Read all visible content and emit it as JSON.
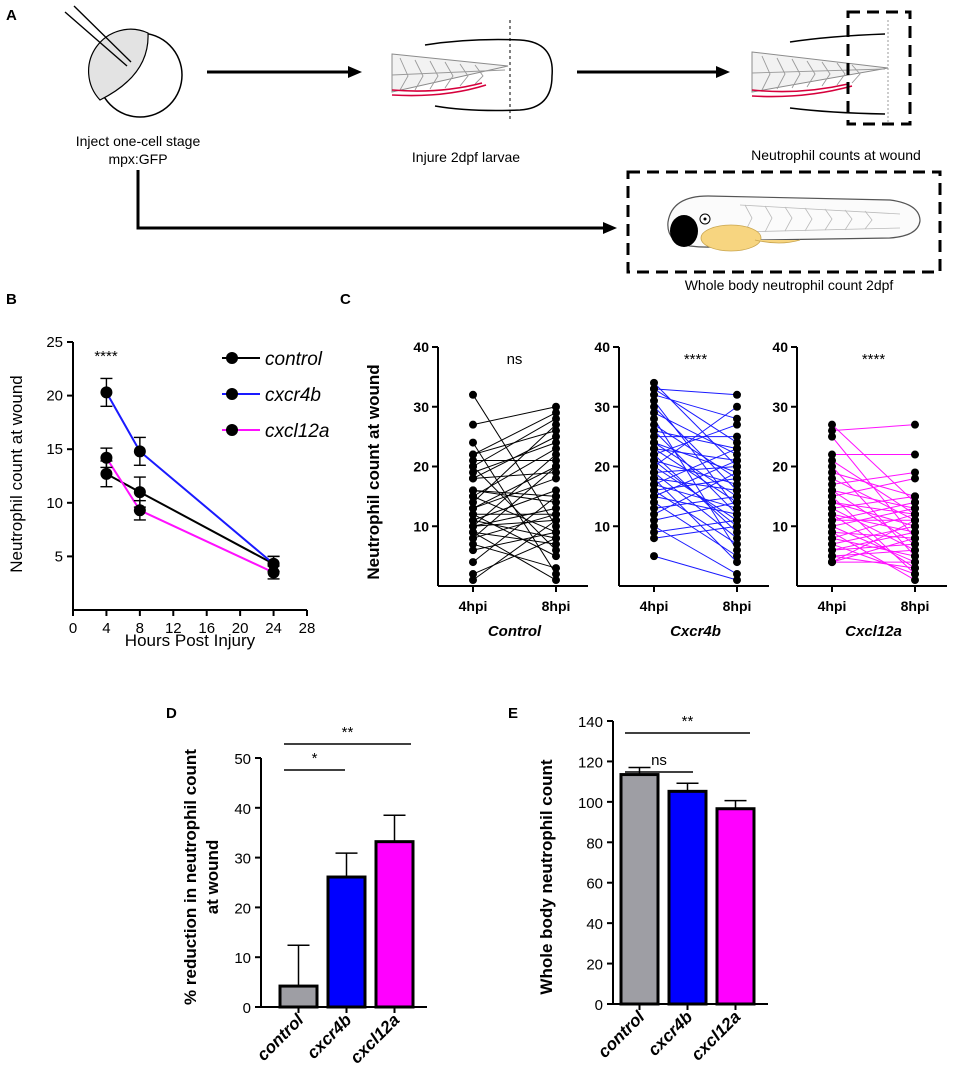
{
  "panels": {
    "A": "A",
    "B": "B",
    "C": "C",
    "D": "D",
    "E": "E"
  },
  "schematic": {
    "step1_line1": "Inject one-cell stage",
    "step1_line2": "mpx:GFP",
    "step2": "Injure 2dpf larvae",
    "step3": "Neutrophil counts at wound",
    "step4": "Whole body neutrophil count 2dpf"
  },
  "colors": {
    "control": "#000000",
    "cxcr4b": "#1a1aff",
    "cxcl12a": "#ff10ff",
    "control_bar": "#9e9ea4",
    "cxcr4b_bar": "#0000ff",
    "cxcl12a_bar": "#ff00ff",
    "fin_red": "#d6003c",
    "yolk": "#f7d580"
  },
  "chart_data": [
    {
      "id": "B",
      "type": "line",
      "title": "",
      "xlabel": "Hours Post Injury",
      "ylabel": "Neutrophil count at wound",
      "xlim": [
        0,
        28
      ],
      "ylim": [
        0,
        25
      ],
      "xticks": [
        0,
        4,
        8,
        12,
        16,
        20,
        24,
        28
      ],
      "yticks": [
        5,
        10,
        15,
        20,
        25
      ],
      "x": [
        4,
        8,
        24
      ],
      "significance": "****",
      "series": [
        {
          "name": "control",
          "values": [
            12.7,
            11.0,
            4.3
          ],
          "errors": [
            1.2,
            1.4,
            0.7
          ]
        },
        {
          "name": "cxcr4b",
          "values": [
            20.3,
            14.8,
            4.3
          ],
          "errors": [
            1.3,
            1.3,
            0.7
          ]
        },
        {
          "name": "cxcl12a",
          "values": [
            14.2,
            9.3,
            3.5
          ],
          "errors": [
            0.9,
            0.9,
            0.6
          ]
        }
      ]
    },
    {
      "id": "C",
      "type": "scatter",
      "title": "",
      "ylabel": "Neutrophil count at wound",
      "ylim": [
        0,
        40
      ],
      "yticks": [
        10,
        20,
        30,
        40
      ],
      "categories": [
        "4hpi",
        "8hpi"
      ],
      "groups": [
        {
          "name": "Control",
          "significance": "ns",
          "pairs": [
            [
              32,
              10
            ],
            [
              27,
              30
            ],
            [
              24,
              2
            ],
            [
              22,
              26
            ],
            [
              22,
              29
            ],
            [
              21,
              21
            ],
            [
              20,
              28
            ],
            [
              20,
              6
            ],
            [
              19,
              24
            ],
            [
              18,
              25
            ],
            [
              18,
              19
            ],
            [
              16,
              15
            ],
            [
              16,
              14
            ],
            [
              15,
              9
            ],
            [
              15,
              23
            ],
            [
              14,
              27
            ],
            [
              13,
              20
            ],
            [
              13,
              18
            ],
            [
              12,
              5
            ],
            [
              12,
              12
            ],
            [
              11,
              16
            ],
            [
              11,
              8
            ],
            [
              10,
              22
            ],
            [
              10,
              11
            ],
            [
              10,
              13
            ],
            [
              9,
              7
            ],
            [
              9,
              1
            ],
            [
              8,
              20
            ],
            [
              8,
              12
            ],
            [
              7,
              3
            ],
            [
              6,
              9
            ],
            [
              4,
              15
            ],
            [
              2,
              8
            ],
            [
              1,
              11
            ]
          ]
        },
        {
          "name": "Cxcr4b",
          "significance": "****",
          "pairs": [
            [
              34,
              20
            ],
            [
              33,
              32
            ],
            [
              33,
              24
            ],
            [
              32,
              28
            ],
            [
              31,
              13
            ],
            [
              30,
              16
            ],
            [
              29,
              22
            ],
            [
              28,
              6
            ],
            [
              27,
              18
            ],
            [
              26,
              23
            ],
            [
              26,
              12
            ],
            [
              25,
              25
            ],
            [
              24,
              19
            ],
            [
              24,
              15
            ],
            [
              23,
              21
            ],
            [
              23,
              14
            ],
            [
              22,
              9
            ],
            [
              22,
              27
            ],
            [
              21,
              17
            ],
            [
              21,
              10
            ],
            [
              20,
              30
            ],
            [
              20,
              11
            ],
            [
              19,
              20
            ],
            [
              19,
              8
            ],
            [
              18,
              16
            ],
            [
              18,
              4
            ],
            [
              17,
              13
            ],
            [
              17,
              23
            ],
            [
              16,
              18
            ],
            [
              16,
              7
            ],
            [
              15,
              12
            ],
            [
              15,
              21
            ],
            [
              14,
              5
            ],
            [
              13,
              15
            ],
            [
              12,
              19
            ],
            [
              11,
              14
            ],
            [
              10,
              2
            ],
            [
              9,
              11
            ],
            [
              8,
              10
            ],
            [
              5,
              1
            ]
          ]
        },
        {
          "name": "Cxcl12a",
          "significance": "****",
          "pairs": [
            [
              27,
              14
            ],
            [
              26,
              27
            ],
            [
              25,
              8
            ],
            [
              22,
              22
            ],
            [
              21,
              12
            ],
            [
              20,
              5
            ],
            [
              19,
              15
            ],
            [
              18,
              11
            ],
            [
              17,
              19
            ],
            [
              16,
              13
            ],
            [
              16,
              7
            ],
            [
              15,
              2
            ],
            [
              15,
              18
            ],
            [
              14,
              10
            ],
            [
              14,
              12
            ],
            [
              13,
              15
            ],
            [
              13,
              6
            ],
            [
              12,
              9
            ],
            [
              12,
              3
            ],
            [
              11,
              11
            ],
            [
              11,
              14
            ],
            [
              10,
              4
            ],
            [
              10,
              13
            ],
            [
              9,
              8
            ],
            [
              9,
              1
            ],
            [
              8,
              12
            ],
            [
              8,
              5
            ],
            [
              7,
              10
            ],
            [
              7,
              2
            ],
            [
              6,
              7
            ],
            [
              6,
              9
            ],
            [
              5,
              3
            ],
            [
              5,
              6
            ],
            [
              4,
              11
            ],
            [
              4,
              4
            ],
            [
              4,
              8
            ]
          ]
        }
      ]
    },
    {
      "id": "D",
      "type": "bar",
      "title": "",
      "ylabel": "% reduction in neutrophil count at wound",
      "ylabel_line1": "% reduction in neutrophil count",
      "ylabel_line2": "at wound",
      "ylim": [
        0,
        50
      ],
      "yticks": [
        0,
        10,
        20,
        30,
        40,
        50
      ],
      "categories": [
        "control",
        "cxcr4b",
        "cxcl12a"
      ],
      "values": [
        4.2,
        26.1,
        33.2
      ],
      "errors": [
        8.2,
        4.8,
        5.3
      ],
      "significance": [
        {
          "from": "control",
          "to": "cxcr4b",
          "label": "*"
        },
        {
          "from": "control",
          "to": "cxcl12a",
          "label": "**"
        }
      ]
    },
    {
      "id": "E",
      "type": "bar",
      "title": "",
      "ylabel": "Whole body neutrophil count",
      "ylim": [
        0,
        140
      ],
      "yticks": [
        0,
        20,
        40,
        60,
        80,
        100,
        120,
        140
      ],
      "categories": [
        "control",
        "cxcr4b",
        "cxcl12a"
      ],
      "values": [
        113.5,
        105.2,
        96.6
      ],
      "errors": [
        3.5,
        4.0,
        4.0
      ],
      "significance": [
        {
          "from": "control",
          "to": "cxcr4b",
          "label": "ns"
        },
        {
          "from": "control",
          "to": "cxcl12a",
          "label": "**"
        }
      ]
    }
  ]
}
